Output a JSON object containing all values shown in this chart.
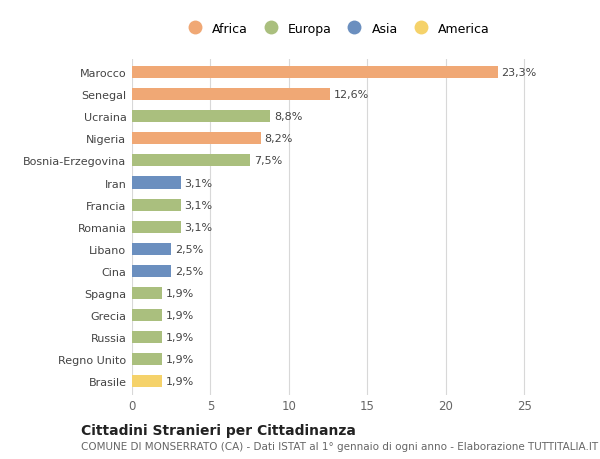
{
  "categories": [
    "Marocco",
    "Senegal",
    "Ucraina",
    "Nigeria",
    "Bosnia-Erzegovina",
    "Iran",
    "Francia",
    "Romania",
    "Libano",
    "Cina",
    "Spagna",
    "Grecia",
    "Russia",
    "Regno Unito",
    "Brasile"
  ],
  "values": [
    23.3,
    12.6,
    8.8,
    8.2,
    7.5,
    3.1,
    3.1,
    3.1,
    2.5,
    2.5,
    1.9,
    1.9,
    1.9,
    1.9,
    1.9
  ],
  "labels": [
    "23,3%",
    "12,6%",
    "8,8%",
    "8,2%",
    "7,5%",
    "3,1%",
    "3,1%",
    "3,1%",
    "2,5%",
    "2,5%",
    "1,9%",
    "1,9%",
    "1,9%",
    "1,9%",
    "1,9%"
  ],
  "continents": [
    "Africa",
    "Africa",
    "Europa",
    "Africa",
    "Europa",
    "Asia",
    "Europa",
    "Europa",
    "Asia",
    "Asia",
    "Europa",
    "Europa",
    "Europa",
    "Europa",
    "America"
  ],
  "continent_colors": {
    "Africa": "#F0A875",
    "Europa": "#AABF7E",
    "Asia": "#6B8FBF",
    "America": "#F5D26A"
  },
  "legend_entries": [
    "Africa",
    "Europa",
    "Asia",
    "America"
  ],
  "title": "Cittadini Stranieri per Cittadinanza",
  "subtitle": "COMUNE DI MONSERRATO (CA) - Dati ISTAT al 1° gennaio di ogni anno - Elaborazione TUTTITALIA.IT",
  "xlim": [
    0,
    26
  ],
  "xticks": [
    0,
    5,
    10,
    15,
    20,
    25
  ],
  "background_color": "#ffffff",
  "bar_height": 0.55,
  "grid_color": "#d8d8d8",
  "label_fontsize": 8.0,
  "ytick_fontsize": 8.0,
  "xtick_fontsize": 8.5,
  "title_fontsize": 10.0,
  "subtitle_fontsize": 7.5,
  "legend_fontsize": 9.0
}
